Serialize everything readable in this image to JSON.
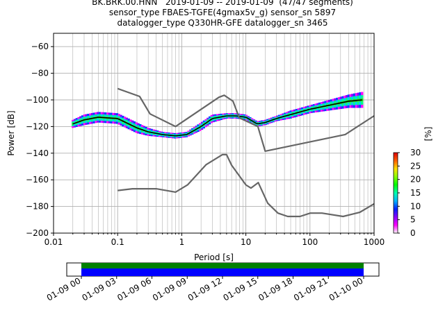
{
  "header": {
    "line1": "BK.BRK.00.HNN   2019-01-09 -- 2019-01-09  (47/47 segments)",
    "line2": "sensor_type FBAES-TGFE(4gmax5v_g) sensor_sn 5897",
    "line3": "datalogger_type Q330HR-GFE datalogger_sn 3465"
  },
  "colorbar": {
    "label": "[%]",
    "ticks": [
      "0",
      "5",
      "10",
      "15",
      "20",
      "25",
      "30"
    ],
    "min": 0,
    "max": 30
  },
  "timeline": {
    "tick_labels": [
      "01-09 00",
      "01-09 03",
      "01-09 06",
      "01-09 09",
      "01-09 12",
      "01-09 15",
      "01-09 18",
      "01-09 21",
      "01-10 00"
    ],
    "coverage_colors": [
      "#008000",
      "#0000ff"
    ]
  },
  "chart_data": {
    "type": "heatmap",
    "xlabel": "Period [s]",
    "ylabel": "Power [dB]",
    "xscale": "log",
    "xlim": [
      0.01,
      1000
    ],
    "ylim": [
      -200,
      -50
    ],
    "xtick_labels": [
      "0.01",
      "0.1",
      "1",
      "10",
      "100",
      "1000"
    ],
    "ytick_labels": [
      "−60",
      "−80",
      "−100",
      "−120",
      "−140",
      "−160",
      "−180",
      "−200"
    ],
    "yticks": [
      -60,
      -80,
      -100,
      -120,
      -140,
      -160,
      -180,
      -200
    ],
    "grid": true,
    "psd_band": {
      "period": [
        0.02,
        0.03,
        0.05,
        0.1,
        0.2,
        0.3,
        0.5,
        0.8,
        1.2,
        2,
        3,
        5,
        7,
        10,
        15,
        20,
        30,
        50,
        100,
        200,
        400,
        650
      ],
      "mean": [
        -118,
        -115,
        -113,
        -114,
        -121,
        -124,
        -126,
        -127,
        -126,
        -120,
        -114,
        -112,
        -112,
        -113,
        -118,
        -117,
        -114,
        -111,
        -107,
        -104,
        -101,
        -100
      ],
      "spread": [
        3,
        4,
        4,
        4,
        4,
        3,
        2,
        2,
        2,
        3,
        3,
        2,
        2,
        2,
        2,
        2,
        2,
        3,
        3,
        4,
        5,
        6
      ]
    },
    "noise_model_high": {
      "period": [
        0.1,
        0.22,
        0.32,
        0.8,
        3.8,
        4.6,
        6.3,
        7.9,
        15.4,
        20,
        354.8,
        1000
      ],
      "power": [
        -91.5,
        -97.4,
        -110.5,
        -120,
        -98,
        -96.5,
        -101,
        -113.5,
        -120,
        -138.5,
        -126,
        -112
      ]
    },
    "noise_model_low": {
      "period": [
        0.1,
        0.17,
        0.4,
        0.8,
        1.24,
        2.4,
        4.3,
        5,
        6,
        10,
        12,
        15.6,
        21.9,
        31.6,
        45,
        70,
        101,
        154,
        328,
        600,
        1000
      ],
      "power": [
        -168,
        -166.7,
        -166.7,
        -169.2,
        -163.7,
        -148.6,
        -141.1,
        -141.1,
        -149,
        -163.8,
        -166.2,
        -162.1,
        -177.5,
        -185,
        -187.5,
        -187.5,
        -185,
        -185,
        -187.5,
        -184.4,
        -178
      ]
    }
  }
}
